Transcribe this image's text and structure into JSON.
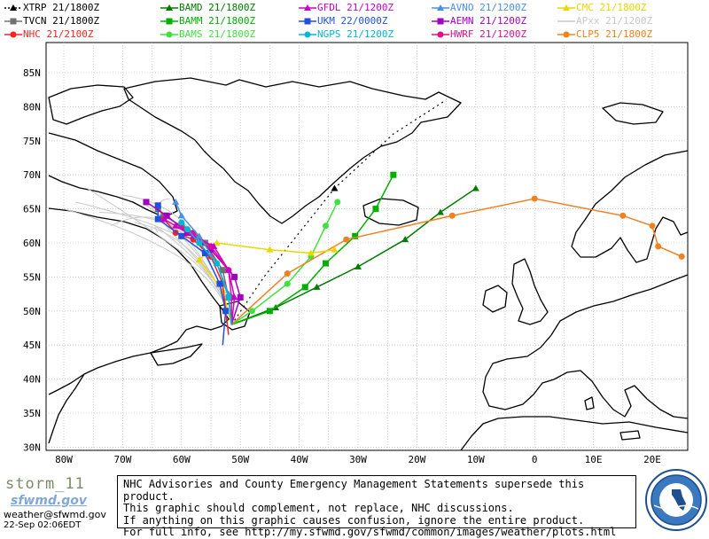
{
  "legend": [
    {
      "label": "XTRP",
      "time": "21/1800Z",
      "color": "#000000",
      "marker": "triangle",
      "dashed": true
    },
    {
      "label": "BAMD",
      "time": "21/1800Z",
      "color": "#007a00",
      "marker": "triangle"
    },
    {
      "label": "GFDL",
      "time": "21/1200Z",
      "color": "#cc00cc",
      "marker": "triangle"
    },
    {
      "label": "AVNO",
      "time": "21/1200Z",
      "color": "#4a90e0",
      "marker": "triangle"
    },
    {
      "label": "CMC",
      "time": "21/1800Z",
      "color": "#e8d800",
      "marker": "triangle"
    },
    {
      "label": "TVCN",
      "time": "21/1800Z",
      "color": "#707070",
      "marker": "square"
    },
    {
      "label": "BAMM",
      "time": "21/1800Z",
      "color": "#00b000",
      "marker": "square"
    },
    {
      "label": "UKM",
      "time": "22/0000Z",
      "color": "#2050e0",
      "marker": "square"
    },
    {
      "label": "AEMN",
      "time": "21/1200Z",
      "color": "#a000c0",
      "marker": "square"
    },
    {
      "label": "APxx",
      "time": "21/1200Z",
      "color": "#c8c8c8",
      "marker": "none"
    },
    {
      "label": "NHC",
      "time": "21/2100Z",
      "color": "#ff2020",
      "marker": "circle"
    },
    {
      "label": "BAMS",
      "time": "21/1800Z",
      "color": "#40e040",
      "marker": "circle"
    },
    {
      "label": "NGPS",
      "time": "21/1200Z",
      "color": "#00b8d0",
      "marker": "circle"
    },
    {
      "label": "HWRF",
      "time": "21/1200Z",
      "color": "#e0108c",
      "marker": "circle"
    },
    {
      "label": "CLP5",
      "time": "21/1800Z",
      "color": "#f08020",
      "marker": "circle"
    }
  ],
  "lat_labels": [
    "85N",
    "80N",
    "75N",
    "70N",
    "65N",
    "60N",
    "55N",
    "50N",
    "45N",
    "40N",
    "35N",
    "30N"
  ],
  "lon_labels": [
    "80W",
    "70W",
    "60W",
    "50W",
    "40W",
    "30W",
    "20W",
    "10W",
    "0",
    "10E",
    "20E"
  ],
  "footer": {
    "storm": "storm_11",
    "site": "sfwmd.gov",
    "email": "weather@sfwmd.gov",
    "date": "22-Sep 02:06EDT",
    "lines": [
      "NHC Advisories and County Emergency Management Statements supersede this product.",
      "This graphic should complement, not replace, NHC discussions.",
      "If anything on this graphic causes confusion, ignore the entire product.",
      "For full info, see  http://my.sfwmd.gov/sfwmd/common/images/weather/plots.html"
    ]
  },
  "tracks": {
    "XTRP": [
      [
        -51.5,
        48.0
      ],
      [
        -46,
        55
      ],
      [
        -40,
        61.5
      ],
      [
        -34,
        68
      ],
      [
        -24,
        76
      ],
      [
        -15,
        81
      ]
    ],
    "BAMD": [
      [
        -51.5,
        48.0
      ],
      [
        -44,
        50.5
      ],
      [
        -37,
        53.5
      ],
      [
        -30,
        56.5
      ],
      [
        -22,
        60.5
      ],
      [
        -16,
        64.5
      ],
      [
        -10,
        68
      ]
    ],
    "BAMM": [
      [
        -51.5,
        48.0
      ],
      [
        -45,
        50
      ],
      [
        -39,
        53.5
      ],
      [
        -35.5,
        57
      ],
      [
        -30.5,
        61
      ],
      [
        -27,
        65
      ],
      [
        -24,
        70
      ]
    ],
    "BAMS": [
      [
        -51.5,
        48.0
      ],
      [
        -48,
        50
      ],
      [
        -42,
        54
      ],
      [
        -38,
        58
      ],
      [
        -35.5,
        62.5
      ],
      [
        -33.5,
        66
      ]
    ],
    "CLP5": [
      [
        -51.5,
        48.0
      ],
      [
        -42,
        55.5
      ],
      [
        -32,
        60.5
      ],
      [
        -14,
        64
      ],
      [
        0,
        66.5
      ],
      [
        15,
        64
      ],
      [
        20,
        62.5
      ],
      [
        21,
        59.5
      ],
      [
        25,
        58
      ]
    ],
    "CMC": [
      [
        -51.5,
        48.0
      ],
      [
        -53,
        53
      ],
      [
        -57,
        57.5
      ],
      [
        -54,
        60
      ],
      [
        -45,
        59
      ],
      [
        -38,
        58.5
      ],
      [
        -34,
        59
      ]
    ],
    "TVCN": [
      [
        -51.5,
        48.0
      ],
      [
        -52,
        52
      ],
      [
        -53,
        56
      ],
      [
        -56,
        60
      ],
      [
        -60,
        62.5
      ],
      [
        -63,
        64
      ],
      [
        -64,
        65
      ]
    ],
    "NHC": [
      [
        -52,
        46.5
      ],
      [
        -52.5,
        50
      ],
      [
        -53,
        54
      ],
      [
        -55,
        58
      ],
      [
        -58,
        60.5
      ],
      [
        -61,
        61.5
      ],
      [
        -63,
        63.5
      ]
    ],
    "UKM": [
      [
        -53,
        45
      ],
      [
        -52.5,
        50
      ],
      [
        -53.5,
        54
      ],
      [
        -56,
        58.5
      ],
      [
        -60,
        61
      ],
      [
        -64,
        63.5
      ],
      [
        -64,
        65.5
      ]
    ],
    "AEMN": [
      [
        -51.5,
        48.0
      ],
      [
        -50,
        52
      ],
      [
        -51,
        55
      ],
      [
        -55,
        59
      ],
      [
        -59,
        61.5
      ],
      [
        -62.5,
        64
      ],
      [
        -66,
        66
      ]
    ],
    "HWRF": [
      [
        -51.5,
        48.0
      ],
      [
        -51.5,
        52
      ],
      [
        -52,
        56
      ],
      [
        -55,
        59.5
      ],
      [
        -58,
        61.5
      ],
      [
        -60,
        62.5
      ]
    ],
    "GFDL": [
      [
        -51.5,
        48.0
      ],
      [
        -51,
        52
      ],
      [
        -52,
        56
      ],
      [
        -54.5,
        59.5
      ],
      [
        -58,
        61
      ],
      [
        -61,
        62.5
      ],
      [
        -63,
        63.5
      ]
    ],
    "AVNO": [
      [
        -51.5,
        48.0
      ],
      [
        -52,
        52.5
      ],
      [
        -54,
        57
      ],
      [
        -57,
        61
      ],
      [
        -60,
        64
      ],
      [
        -61,
        66
      ]
    ],
    "NGPS": [
      [
        -51.5,
        48.0
      ],
      [
        -52,
        52
      ],
      [
        -54,
        57
      ],
      [
        -57,
        60
      ],
      [
        -59,
        62
      ],
      [
        -60,
        63
      ]
    ]
  },
  "chart_data": {
    "type": "line",
    "title": "",
    "xlabel": "",
    "ylabel": "",
    "xlim": [
      -82,
      26
    ],
    "ylim": [
      30,
      89
    ],
    "grid": true,
    "legend_placement": "top"
  }
}
